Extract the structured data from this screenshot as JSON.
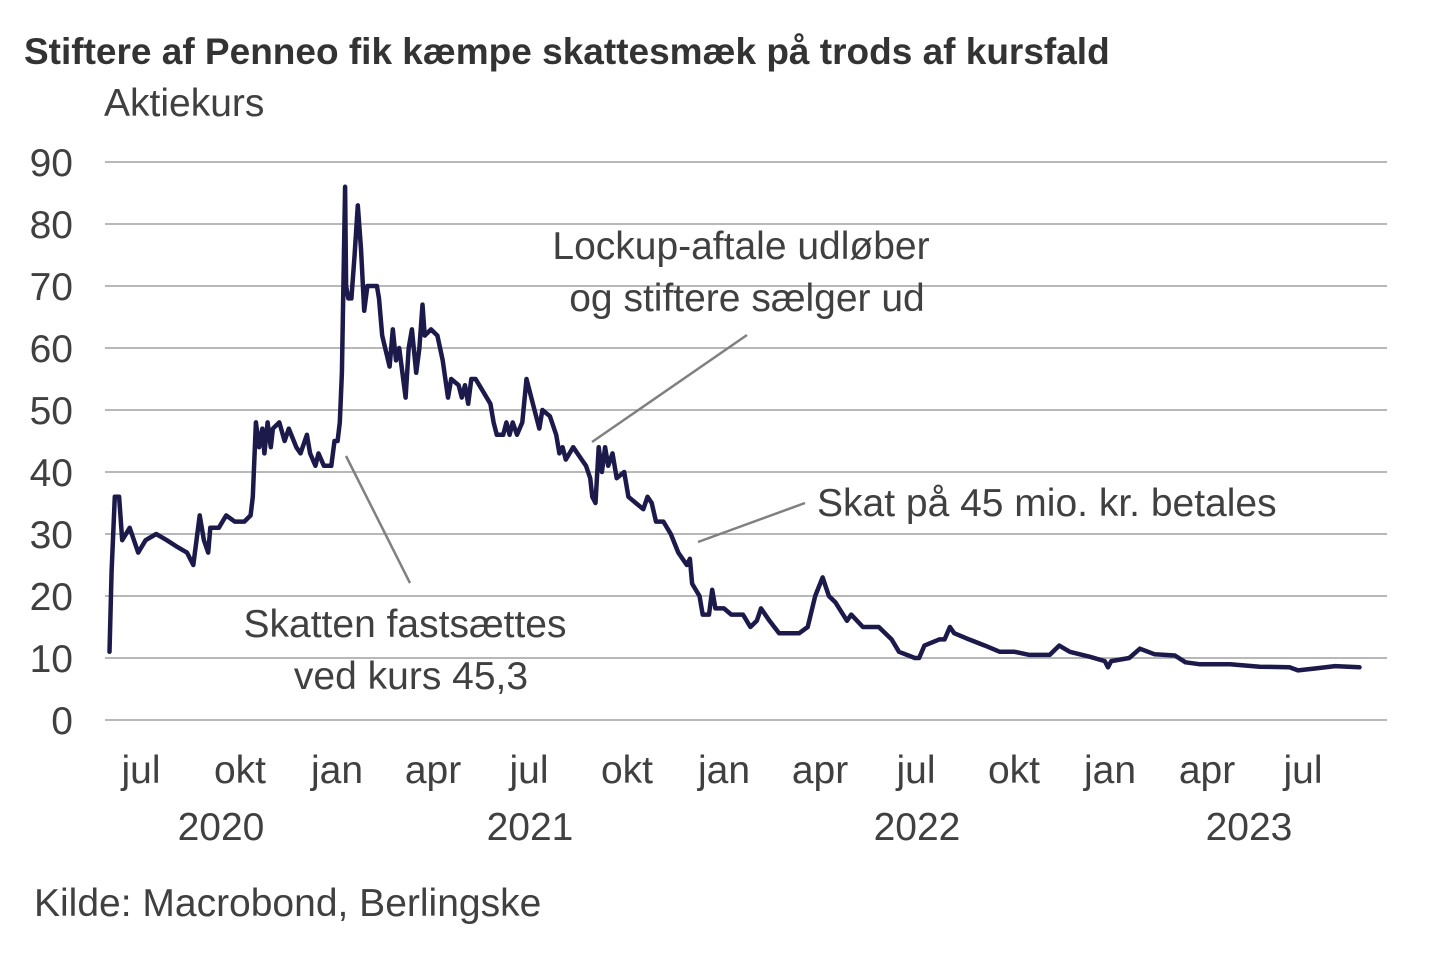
{
  "chart_data": {
    "type": "line",
    "title": "Stiftere af Penneo fik kæmpe skattesmæk på trods af kursfald",
    "ylabel": "Aktiekurs",
    "ylim": [
      0,
      90
    ],
    "yticks": [
      0,
      10,
      20,
      30,
      40,
      50,
      60,
      70,
      80,
      90
    ],
    "grid": true,
    "line_color": "#1c1a4a",
    "x_month_labels": [
      "jul",
      "okt",
      "jan",
      "apr",
      "jul",
      "okt",
      "jan",
      "apr",
      "jul",
      "okt",
      "jan",
      "apr",
      "jul"
    ],
    "x_year_labels": [
      "2020",
      "2021",
      "2022",
      "2023"
    ],
    "source": "Kilde: Macrobond, Berlingske",
    "annotations": [
      {
        "lines": [
          "Lockup-aftale udløber",
          "og stiftere sælger ud"
        ],
        "date": "2021-09-24"
      },
      {
        "lines": [
          "Skat på 45 mio. kr. betales"
        ],
        "date": "2021-12-12"
      },
      {
        "lines": [
          "Skatten fastsættes",
          "ved kurs 45,3"
        ],
        "date": "2021-01-17"
      }
    ],
    "series": [
      {
        "points": [
          [
            "2020-06-17",
            11
          ],
          [
            "2020-06-19",
            24
          ],
          [
            "2020-06-22",
            36
          ],
          [
            "2020-06-26",
            36
          ],
          [
            "2020-06-29",
            29
          ],
          [
            "2020-07-06",
            31
          ],
          [
            "2020-07-14",
            27
          ],
          [
            "2020-07-21",
            29
          ],
          [
            "2020-07-31",
            30
          ],
          [
            "2020-08-10",
            29
          ],
          [
            "2020-08-19",
            28
          ],
          [
            "2020-08-29",
            27
          ],
          [
            "2020-09-04",
            25
          ],
          [
            "2020-09-10",
            33
          ],
          [
            "2020-09-14",
            29
          ],
          [
            "2020-09-18",
            27
          ],
          [
            "2020-09-20",
            31
          ],
          [
            "2020-09-28",
            31
          ],
          [
            "2020-10-05",
            33
          ],
          [
            "2020-10-13",
            32
          ],
          [
            "2020-10-22",
            32
          ],
          [
            "2020-10-28",
            33
          ],
          [
            "2020-10-30",
            36
          ],
          [
            "2020-11-02",
            48
          ],
          [
            "2020-11-05",
            44
          ],
          [
            "2020-11-08",
            47
          ],
          [
            "2020-11-10",
            43
          ],
          [
            "2020-11-13",
            48
          ],
          [
            "2020-11-16",
            44
          ],
          [
            "2020-11-18",
            47
          ],
          [
            "2020-11-24",
            48
          ],
          [
            "2020-11-29",
            45
          ],
          [
            "2020-12-03",
            47
          ],
          [
            "2020-12-10",
            44
          ],
          [
            "2020-12-14",
            43
          ],
          [
            "2020-12-20",
            46
          ],
          [
            "2020-12-23",
            43
          ],
          [
            "2020-12-28",
            41
          ],
          [
            "2020-12-31",
            43
          ],
          [
            "2021-01-05",
            41
          ],
          [
            "2021-01-12",
            41
          ],
          [
            "2021-01-15",
            45
          ],
          [
            "2021-01-18",
            45
          ],
          [
            "2021-01-20",
            48
          ],
          [
            "2021-01-22",
            56
          ],
          [
            "2021-01-25",
            86
          ],
          [
            "2021-01-26",
            70
          ],
          [
            "2021-01-28",
            68
          ],
          [
            "2021-01-31",
            68
          ],
          [
            "2021-02-03",
            75
          ],
          [
            "2021-02-06",
            83
          ],
          [
            "2021-02-09",
            76
          ],
          [
            "2021-02-12",
            66
          ],
          [
            "2021-02-15",
            70
          ],
          [
            "2021-02-20",
            70
          ],
          [
            "2021-02-24",
            70
          ],
          [
            "2021-02-26",
            68
          ],
          [
            "2021-03-01",
            62
          ],
          [
            "2021-03-08",
            57
          ],
          [
            "2021-03-11",
            63
          ],
          [
            "2021-03-14",
            58
          ],
          [
            "2021-03-17",
            60
          ],
          [
            "2021-03-23",
            52
          ],
          [
            "2021-03-26",
            60
          ],
          [
            "2021-03-29",
            63
          ],
          [
            "2021-04-02",
            56
          ],
          [
            "2021-04-05",
            60
          ],
          [
            "2021-04-08",
            67
          ],
          [
            "2021-04-10",
            62
          ],
          [
            "2021-04-16",
            63
          ],
          [
            "2021-04-22",
            62
          ],
          [
            "2021-04-27",
            58
          ],
          [
            "2021-05-02",
            52
          ],
          [
            "2021-05-05",
            55
          ],
          [
            "2021-05-12",
            54
          ],
          [
            "2021-05-15",
            52
          ],
          [
            "2021-05-18",
            54
          ],
          [
            "2021-05-21",
            51
          ],
          [
            "2021-05-24",
            55
          ],
          [
            "2021-05-28",
            55
          ],
          [
            "2021-06-04",
            53
          ],
          [
            "2021-06-11",
            51
          ],
          [
            "2021-06-14",
            48
          ],
          [
            "2021-06-17",
            46
          ],
          [
            "2021-06-23",
            46
          ],
          [
            "2021-06-26",
            48
          ],
          [
            "2021-06-29",
            46
          ],
          [
            "2021-07-02",
            48
          ],
          [
            "2021-07-06",
            46
          ],
          [
            "2021-07-11",
            48
          ],
          [
            "2021-07-15",
            55
          ],
          [
            "2021-07-18",
            53
          ],
          [
            "2021-07-21",
            51
          ],
          [
            "2021-07-27",
            47
          ],
          [
            "2021-07-30",
            50
          ],
          [
            "2021-08-06",
            49
          ],
          [
            "2021-08-12",
            46
          ],
          [
            "2021-08-15",
            43
          ],
          [
            "2021-08-18",
            44
          ],
          [
            "2021-08-21",
            42
          ],
          [
            "2021-08-28",
            44
          ],
          [
            "2021-09-05",
            42
          ],
          [
            "2021-09-09",
            41
          ],
          [
            "2021-09-13",
            39
          ],
          [
            "2021-09-15",
            36
          ],
          [
            "2021-09-18",
            35
          ],
          [
            "2021-09-21",
            44
          ],
          [
            "2021-09-24",
            40
          ],
          [
            "2021-09-27",
            44
          ],
          [
            "2021-09-30",
            41
          ],
          [
            "2021-10-04",
            43
          ],
          [
            "2021-10-08",
            39
          ],
          [
            "2021-10-15",
            40
          ],
          [
            "2021-10-19",
            36
          ],
          [
            "2021-10-26",
            35
          ],
          [
            "2021-11-02",
            34
          ],
          [
            "2021-11-06",
            36
          ],
          [
            "2021-11-10",
            35
          ],
          [
            "2021-11-14",
            32
          ],
          [
            "2021-11-21",
            32
          ],
          [
            "2021-11-28",
            30
          ],
          [
            "2021-12-05",
            27
          ],
          [
            "2021-12-13",
            25
          ],
          [
            "2021-12-16",
            26
          ],
          [
            "2021-12-18",
            22
          ],
          [
            "2021-12-25",
            20
          ],
          [
            "2021-12-28",
            17
          ],
          [
            "2022-01-03",
            17
          ],
          [
            "2022-01-06",
            21
          ],
          [
            "2022-01-09",
            18
          ],
          [
            "2022-01-17",
            18
          ],
          [
            "2022-01-24",
            17
          ],
          [
            "2022-02-04",
            17
          ],
          [
            "2022-02-11",
            15
          ],
          [
            "2022-02-17",
            16
          ],
          [
            "2022-02-21",
            18
          ],
          [
            "2022-03-01",
            16
          ],
          [
            "2022-03-10",
            14
          ],
          [
            "2022-03-18",
            14
          ],
          [
            "2022-03-29",
            14
          ],
          [
            "2022-04-06",
            15
          ],
          [
            "2022-04-13",
            20
          ],
          [
            "2022-04-20",
            23
          ],
          [
            "2022-04-26",
            20
          ],
          [
            "2022-05-02",
            19
          ],
          [
            "2022-05-13",
            16
          ],
          [
            "2022-05-17",
            17
          ],
          [
            "2022-05-28",
            15
          ],
          [
            "2022-06-12",
            15
          ],
          [
            "2022-06-24",
            13
          ],
          [
            "2022-07-01",
            11
          ],
          [
            "2022-07-16",
            10
          ],
          [
            "2022-07-20",
            10
          ],
          [
            "2022-07-25",
            12
          ],
          [
            "2022-08-08",
            13
          ],
          [
            "2022-08-13",
            13
          ],
          [
            "2022-08-18",
            15
          ],
          [
            "2022-08-22",
            14
          ],
          [
            "2022-09-05",
            13
          ],
          [
            "2022-09-20",
            12
          ],
          [
            "2022-10-04",
            11
          ],
          [
            "2022-10-18",
            11
          ],
          [
            "2022-11-01",
            10.5
          ],
          [
            "2022-11-20",
            10.5
          ],
          [
            "2022-11-29",
            12
          ],
          [
            "2022-12-09",
            11
          ],
          [
            "2022-12-28",
            10.2
          ],
          [
            "2023-01-11",
            9.5
          ],
          [
            "2023-01-14",
            8.5
          ],
          [
            "2023-01-17",
            9.5
          ],
          [
            "2023-02-03",
            10
          ],
          [
            "2023-02-13",
            11.5
          ],
          [
            "2023-02-27",
            10.6
          ],
          [
            "2023-03-18",
            10.4
          ],
          [
            "2023-03-28",
            9.3
          ],
          [
            "2023-04-10",
            9
          ],
          [
            "2023-05-09",
            9
          ],
          [
            "2023-06-06",
            8.6
          ],
          [
            "2023-07-04",
            8.5
          ],
          [
            "2023-07-12",
            8
          ],
          [
            "2023-07-28",
            8.3
          ],
          [
            "2023-08-16",
            8.7
          ],
          [
            "2023-09-08",
            8.5
          ]
        ]
      }
    ]
  }
}
